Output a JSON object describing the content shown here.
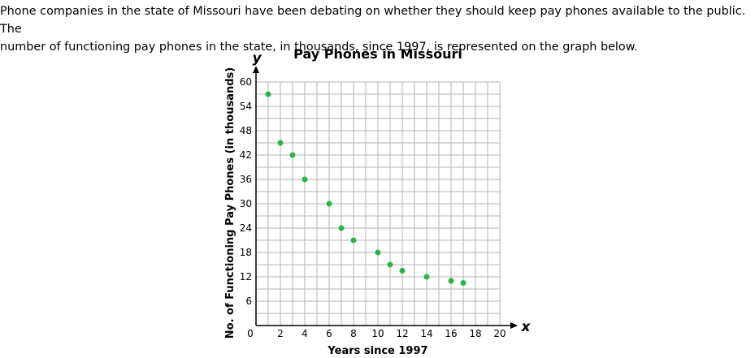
{
  "question": {
    "line1": "Phone companies in the state of Missouri have been debating on whether they should keep pay phones available to the public. The",
    "line2": "number of functioning pay phones in the state, in thousands, since 1997, is represented on the graph below."
  },
  "chart_data": {
    "type": "scatter",
    "title": "Pay Phones in Missouri",
    "xlabel": "Years since 1997",
    "ylabel": "No. of Functioning Pay Phones (in thousands)",
    "x_axis_letter": "x",
    "y_axis_letter": "y",
    "xlim": [
      0,
      20
    ],
    "ylim": [
      0,
      60
    ],
    "x_minor_step": 1,
    "y_minor_step": 3,
    "x_ticks": [
      0,
      2,
      4,
      6,
      8,
      10,
      12,
      14,
      16,
      18,
      20
    ],
    "y_ticks": [
      6,
      12,
      18,
      24,
      30,
      36,
      42,
      48,
      54,
      60
    ],
    "grid": true,
    "point_color": "#2db34a",
    "points": [
      {
        "x": 1,
        "y": 57
      },
      {
        "x": 2,
        "y": 45
      },
      {
        "x": 3,
        "y": 42
      },
      {
        "x": 4,
        "y": 36
      },
      {
        "x": 6,
        "y": 30
      },
      {
        "x": 7,
        "y": 24
      },
      {
        "x": 8,
        "y": 21
      },
      {
        "x": 10,
        "y": 18
      },
      {
        "x": 11,
        "y": 15
      },
      {
        "x": 12,
        "y": 13.5
      },
      {
        "x": 14,
        "y": 12
      },
      {
        "x": 16,
        "y": 11
      },
      {
        "x": 17,
        "y": 10.5
      }
    ]
  }
}
